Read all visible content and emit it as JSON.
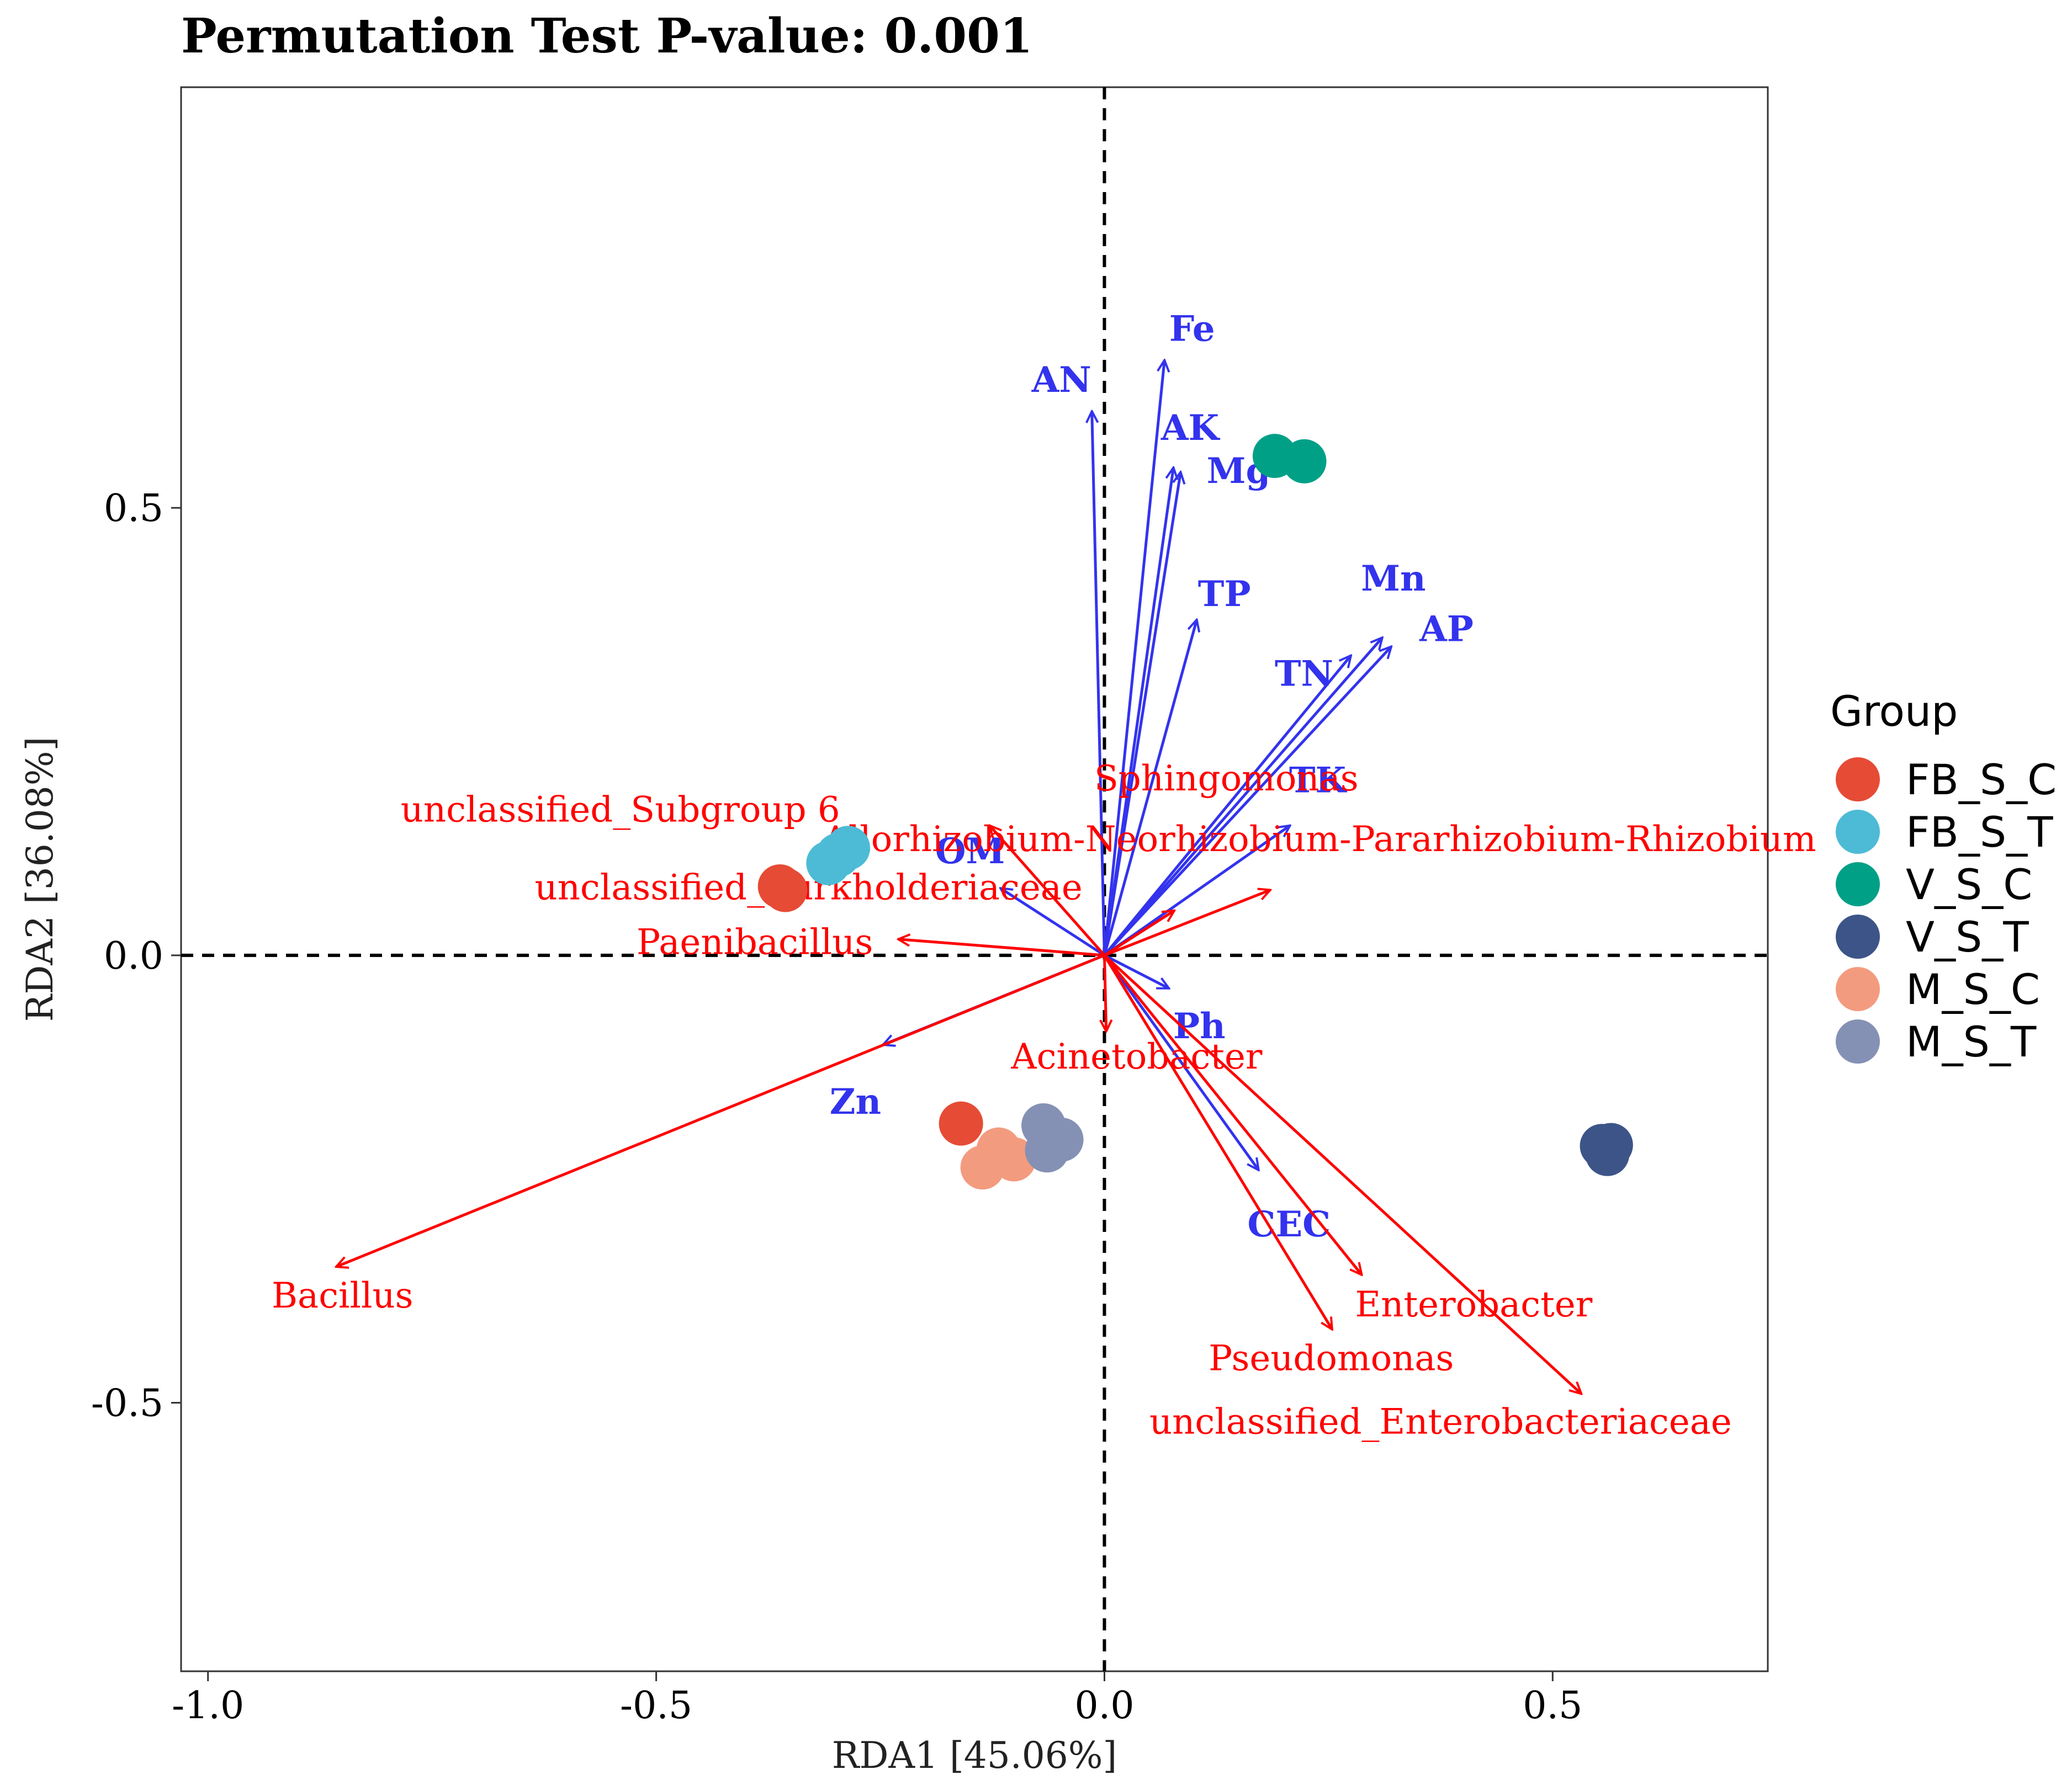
{
  "chart_data": {
    "type": "scatter",
    "title": "Permutation Test P-value: 0.001",
    "xlabel": "RDA1 [45.06%]",
    "ylabel": "RDA2 [36.08%]",
    "xlim": [
      -1.03,
      0.74
    ],
    "ylim": [
      -0.8,
      0.97
    ],
    "xticks": [
      -1.0,
      -0.5,
      0.0,
      0.5
    ],
    "xtick_labels": [
      "-1.0",
      "-0.5",
      "0.0",
      "0.5"
    ],
    "yticks": [
      -0.5,
      0.0,
      0.5
    ],
    "ytick_labels": [
      "-0.5",
      "0.0",
      "0.5"
    ],
    "grid": false,
    "reference_lines": [
      0,
      0
    ],
    "legend": {
      "title": "Group",
      "position": "right",
      "entries": [
        {
          "name": "FB_S_C",
          "color": "#E64B35"
        },
        {
          "name": "FB_S_T",
          "color": "#4DBBD5"
        },
        {
          "name": "V_S_C",
          "color": "#00A087"
        },
        {
          "name": "V_S_T",
          "color": "#3C5488"
        },
        {
          "name": "M_S_C",
          "color": "#F39B7F"
        },
        {
          "name": "M_S_T",
          "color": "#8491B4"
        }
      ]
    },
    "series": [
      {
        "name": "FB_S_C",
        "color": "#E64B35",
        "points": [
          [
            -0.356,
            0.073
          ],
          [
            -0.362,
            0.077
          ],
          [
            -0.16,
            -0.188
          ]
        ]
      },
      {
        "name": "FB_S_T",
        "color": "#4DBBD5",
        "points": [
          [
            -0.308,
            0.103
          ],
          [
            -0.297,
            0.112
          ],
          [
            -0.286,
            0.12
          ]
        ]
      },
      {
        "name": "V_S_C",
        "color": "#00A087",
        "points": [
          [
            0.19,
            0.558
          ],
          [
            0.223,
            0.552
          ]
        ]
      },
      {
        "name": "V_S_T",
        "color": "#3C5488",
        "points": [
          [
            0.555,
            -0.213
          ],
          [
            0.565,
            -0.212
          ],
          [
            0.561,
            -0.222
          ]
        ]
      },
      {
        "name": "M_S_C",
        "color": "#F39B7F",
        "points": [
          [
            -0.118,
            -0.217
          ],
          [
            -0.101,
            -0.228
          ],
          [
            -0.136,
            -0.237
          ]
        ]
      },
      {
        "name": "M_S_T",
        "color": "#8491B4",
        "points": [
          [
            -0.068,
            -0.19
          ],
          [
            -0.048,
            -0.206
          ],
          [
            -0.064,
            -0.218
          ]
        ]
      }
    ],
    "env_vectors": {
      "color": "#3333EE",
      "items": [
        {
          "label": "Fe",
          "x": 0.067,
          "y": 0.665
        },
        {
          "label": "AN",
          "x": -0.014,
          "y": 0.608
        },
        {
          "label": "AK",
          "x": 0.077,
          "y": 0.545
        },
        {
          "label": "Mg",
          "x": 0.085,
          "y": 0.54
        },
        {
          "label": "TP",
          "x": 0.103,
          "y": 0.375
        },
        {
          "label": "Mn",
          "x": 0.31,
          "y": 0.355
        },
        {
          "label": "AP",
          "x": 0.32,
          "y": 0.345
        },
        {
          "label": "TN",
          "x": 0.275,
          "y": 0.335
        },
        {
          "label": "TK",
          "x": 0.207,
          "y": 0.145
        },
        {
          "label": "OM",
          "x": -0.116,
          "y": 0.075
        },
        {
          "label": "Ph",
          "x": 0.072,
          "y": -0.037
        },
        {
          "label": "Zn",
          "x": -0.247,
          "y": -0.1
        },
        {
          "label": "CEC",
          "x": 0.172,
          "y": -0.24
        }
      ]
    },
    "taxa_vectors": {
      "color": "#FF0000",
      "items": [
        {
          "label": "Bacillus",
          "x": -0.857,
          "y": -0.348
        },
        {
          "label": "unclassified_Subgroup 6",
          "x": -0.128,
          "y": 0.145
        },
        {
          "label": "Sphingomonas",
          "x": 0.0,
          "y": 0.0
        },
        {
          "label": "Allorhizobium-Neorhizobium-Pararhizobium-Rhizobium",
          "x": 0.185,
          "y": 0.073
        },
        {
          "label": "unclassified_Burkholderiaceae",
          "x": 0.078,
          "y": 0.05
        },
        {
          "label": "Paenibacillus",
          "x": -0.23,
          "y": 0.018
        },
        {
          "label": "Acinetobacter",
          "x": 0.002,
          "y": -0.085
        },
        {
          "label": "Enterobacter",
          "x": 0.287,
          "y": -0.357
        },
        {
          "label": "Pseudomonas",
          "x": 0.254,
          "y": -0.418
        },
        {
          "label": "unclassified_Enterobacteriaceae",
          "x": 0.532,
          "y": -0.49
        }
      ]
    }
  }
}
